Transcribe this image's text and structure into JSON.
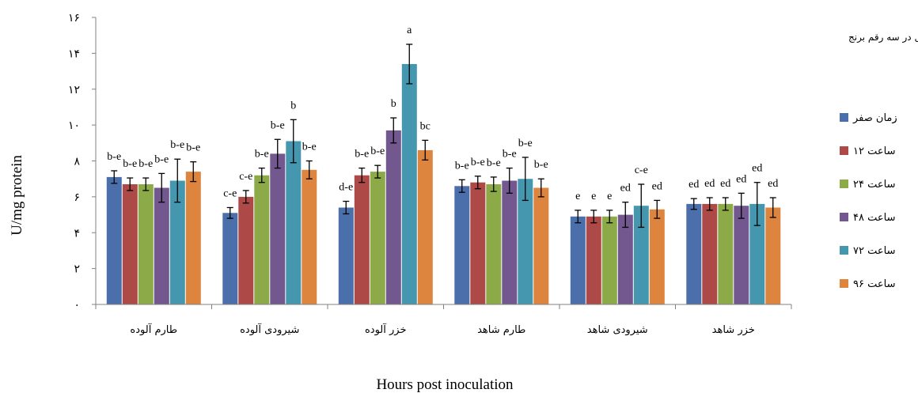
{
  "chart_data": {
    "type": "bar",
    "title": "تغییرات فنل کل در سه رقم برنج",
    "xlabel": "Hours post inoculation",
    "ylabel": "U/mg protein",
    "ylim": [
      0,
      16
    ],
    "yticks": [
      0,
      2,
      4,
      6,
      8,
      10,
      12,
      14,
      16
    ],
    "ytick_labels": [
      "۰",
      "۲",
      "۴",
      "۶",
      "۸",
      "۱۰",
      "۱۲",
      "۱۴",
      "۱۶"
    ],
    "grid": false,
    "legend_position": "right",
    "categories": [
      "طارم آلوده",
      "شیرودی آلوده",
      "خزر آلوده",
      "طارم شاهد",
      "شیرودی شاهد",
      "خزر شاهد"
    ],
    "series": [
      {
        "name": "زمان صفر",
        "color": "#4a6fab",
        "values": [
          7.1,
          5.1,
          5.4,
          6.6,
          4.9,
          5.6
        ],
        "errors": [
          0.35,
          0.3,
          0.35,
          0.35,
          0.35,
          0.3
        ],
        "letters": [
          "b-e",
          "c-e",
          "d-e",
          "b-e",
          "e",
          "ed"
        ]
      },
      {
        "name": "۱۲ ساعت",
        "color": "#ad4a48",
        "values": [
          6.7,
          6.0,
          7.2,
          6.8,
          4.9,
          5.6
        ],
        "errors": [
          0.35,
          0.35,
          0.4,
          0.35,
          0.35,
          0.35
        ],
        "letters": [
          "b-e",
          "c-e",
          "b-e",
          "b-e",
          "e",
          "ed"
        ]
      },
      {
        "name": "۲۴ ساعت",
        "color": "#8cab48",
        "values": [
          6.7,
          7.2,
          7.4,
          6.7,
          4.9,
          5.6
        ],
        "errors": [
          0.35,
          0.4,
          0.35,
          0.4,
          0.35,
          0.35
        ],
        "letters": [
          "b-e",
          "b-e",
          "b-e",
          "b-e",
          "e",
          "ed"
        ]
      },
      {
        "name": "۴۸ ساعت",
        "color": "#72588f",
        "values": [
          6.5,
          8.4,
          9.7,
          6.9,
          5.0,
          5.5
        ],
        "errors": [
          0.8,
          0.8,
          0.7,
          0.7,
          0.7,
          0.7
        ],
        "letters": [
          "b-e",
          "b-e",
          "b",
          "b-e",
          "ed",
          "ed"
        ]
      },
      {
        "name": "۷۲ ساعت",
        "color": "#4497ae",
        "values": [
          6.9,
          9.1,
          13.4,
          7.0,
          5.5,
          5.6
        ],
        "errors": [
          1.2,
          1.2,
          1.1,
          1.2,
          1.2,
          1.2
        ],
        "letters": [
          "b-e",
          "b",
          "a",
          "b-e",
          "c-e",
          "ed"
        ]
      },
      {
        "name": "۹۶ ساعت",
        "color": "#dd843f",
        "values": [
          7.4,
          7.5,
          8.6,
          6.5,
          5.3,
          5.4
        ],
        "errors": [
          0.55,
          0.5,
          0.55,
          0.5,
          0.5,
          0.55
        ],
        "letters": [
          "b-e",
          "b-e",
          "bc",
          "b-e",
          "ed",
          "ed"
        ]
      }
    ]
  }
}
